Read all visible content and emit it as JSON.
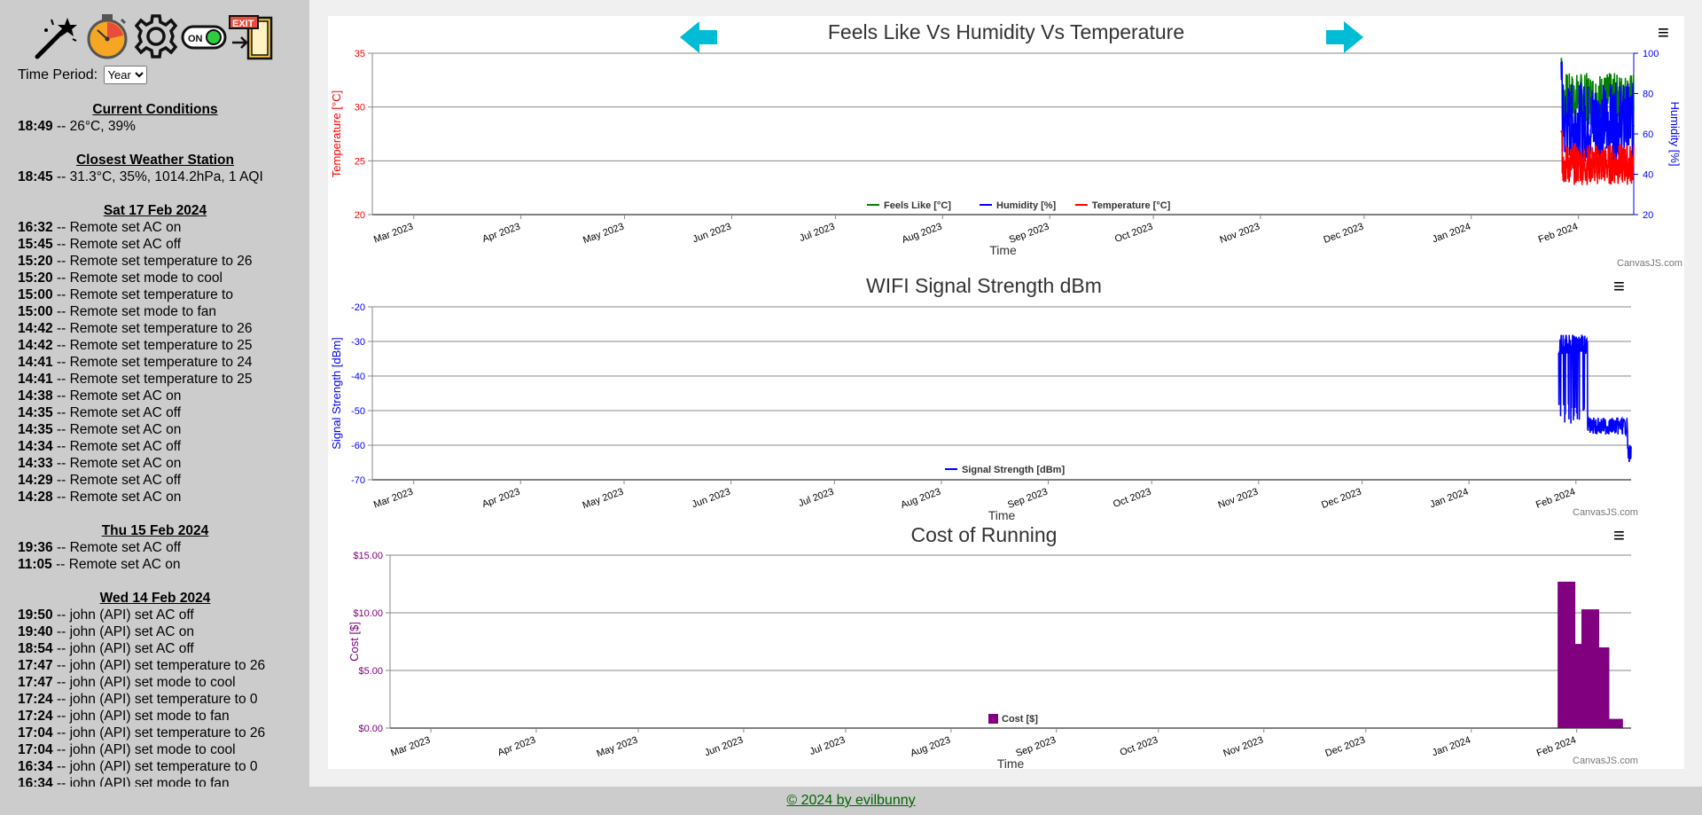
{
  "toolbar": {
    "icons": [
      "magic-wand-icon",
      "timer-icon",
      "gear-icon",
      "power-toggle-icon",
      "exit-icon"
    ],
    "toggle_label": "ON",
    "exit_label": "EXIT"
  },
  "period": {
    "label": "Time Period:",
    "selected": "Year",
    "options": [
      "Year"
    ]
  },
  "current": {
    "heading": "Current Conditions",
    "time": "18:49",
    "text": " -- 26°C, 39%"
  },
  "station": {
    "heading": "Closest Weather Station",
    "time": "18:45",
    "text": " -- 31.3°C, 35%, 1014.2hPa, 1 AQI"
  },
  "log": [
    {
      "date": "Sat 17 Feb 2024",
      "entries": [
        [
          "16:32",
          " -- Remote set AC on"
        ],
        [
          "15:45",
          " -- Remote set AC off"
        ],
        [
          "15:20",
          " -- Remote set temperature to 26"
        ],
        [
          "15:20",
          " -- Remote set mode to cool"
        ],
        [
          "15:00",
          " -- Remote set temperature to"
        ],
        [
          "15:00",
          " -- Remote set mode to fan"
        ],
        [
          "14:42",
          " -- Remote set temperature to 26"
        ],
        [
          "14:42",
          " -- Remote set temperature to 25"
        ],
        [
          "14:41",
          " -- Remote set temperature to 24"
        ],
        [
          "14:41",
          " -- Remote set temperature to 25"
        ],
        [
          "14:38",
          " -- Remote set AC on"
        ],
        [
          "14:35",
          " -- Remote set AC off"
        ],
        [
          "14:35",
          " -- Remote set AC on"
        ],
        [
          "14:34",
          " -- Remote set AC off"
        ],
        [
          "14:33",
          " -- Remote set AC on"
        ],
        [
          "14:29",
          " -- Remote set AC off"
        ],
        [
          "14:28",
          " -- Remote set AC on"
        ]
      ]
    },
    {
      "date": "Thu 15 Feb 2024",
      "entries": [
        [
          "19:36",
          " -- Remote set AC off"
        ],
        [
          "11:05",
          " -- Remote set AC on"
        ]
      ]
    },
    {
      "date": "Wed 14 Feb 2024",
      "entries": [
        [
          "19:50",
          " -- john (API) set AC off"
        ],
        [
          "19:40",
          " -- john (API) set AC on"
        ],
        [
          "18:54",
          " -- john (API) set AC off"
        ],
        [
          "17:47",
          " -- john (API) set temperature to 26"
        ],
        [
          "17:47",
          " -- john (API) set mode to cool"
        ],
        [
          "17:24",
          " -- john (API) set temperature to 0"
        ],
        [
          "17:24",
          " -- john (API) set mode to fan"
        ],
        [
          "17:04",
          " -- john (API) set temperature to 26"
        ],
        [
          "17:04",
          " -- john (API) set mode to cool"
        ],
        [
          "16:34",
          " -- john (API) set temperature to 0"
        ],
        [
          "16:34",
          " -- john (API) set mode to fan"
        ]
      ]
    }
  ],
  "footer": {
    "text": "© 2024 by evilbunny"
  },
  "canvasjs_credit": "CanvasJS.com",
  "colors": {
    "green": "#008000",
    "blue": "#0000ff",
    "red": "#ff0000",
    "purple": "#800080",
    "arrow": "#00bcd4"
  },
  "chart_data": [
    {
      "type": "line",
      "title": "Feels Like Vs Humidity Vs Temperature",
      "xlabel": "Time",
      "ylabel": "Temperature [°C]",
      "y2label": "Humidity [%]",
      "x_ticks": [
        "Mar 2023",
        "Apr 2023",
        "May 2023",
        "Jun 2023",
        "Jul 2023",
        "Aug 2023",
        "Sep 2023",
        "Oct 2023",
        "Nov 2023",
        "Dec 2023",
        "Jan 2024",
        "Feb 2024"
      ],
      "ylim": [
        20,
        35
      ],
      "y_ticks": [
        20,
        25,
        30,
        35
      ],
      "y2lim": [
        20,
        100
      ],
      "y2_ticks": [
        20,
        40,
        60,
        80,
        100
      ],
      "xlim": [
        "2023-02-17",
        "2024-02-17"
      ],
      "legend": "bottom-center",
      "series": [
        {
          "name": "Feels Like [°C]",
          "color": "#008000",
          "x_range": [
            "2024-01-27",
            "2024-02-17"
          ],
          "min": 26,
          "max": 35
        },
        {
          "name": "Humidity [%]",
          "color": "#0000ff",
          "axis": "y2",
          "x_range": [
            "2024-01-27",
            "2024-02-17"
          ],
          "min": 28,
          "max": 100
        },
        {
          "name": "Temperature [°C]",
          "color": "#ff0000",
          "x_range": [
            "2024-01-27",
            "2024-02-17"
          ],
          "min": 21,
          "max": 28
        }
      ]
    },
    {
      "type": "line",
      "title": "WIFI Signal Strength dBm",
      "xlabel": "Time",
      "ylabel": "Signal Strength [dBm]",
      "x_ticks": [
        "Mar 2023",
        "Apr 2023",
        "May 2023",
        "Jun 2023",
        "Jul 2023",
        "Aug 2023",
        "Sep 2023",
        "Oct 2023",
        "Nov 2023",
        "Dec 2023",
        "Jan 2024",
        "Feb 2024"
      ],
      "ylim": [
        -70,
        -20
      ],
      "y_ticks": [
        -70,
        -60,
        -50,
        -40,
        -30,
        -20
      ],
      "xlim": [
        "2023-02-17",
        "2024-02-17"
      ],
      "legend": "bottom-center",
      "series": [
        {
          "name": "Signal Strength [dBm]",
          "color": "#0000ff",
          "x_range": [
            "2024-01-27",
            "2024-02-17"
          ],
          "min": -63,
          "max": -28
        }
      ]
    },
    {
      "type": "bar",
      "title": "Cost of Running",
      "xlabel": "Time",
      "ylabel": "Cost [$]",
      "x_ticks": [
        "Mar 2023",
        "Apr 2023",
        "May 2023",
        "Jun 2023",
        "Jul 2023",
        "Aug 2023",
        "Sep 2023",
        "Oct 2023",
        "Nov 2023",
        "Dec 2023",
        "Jan 2024",
        "Feb 2024"
      ],
      "ylim": [
        0,
        15
      ],
      "y_ticks": [
        "$0.00",
        "$5.00",
        "$10.00",
        "$15.00"
      ],
      "xlim": [
        "2023-02-17",
        "2024-02-17"
      ],
      "legend": "bottom-center",
      "series": [
        {
          "name": "Cost [$]",
          "color": "#800080",
          "x": [
            "2024-01-29",
            "2024-02-01",
            "2024-02-05",
            "2024-02-08",
            "2024-02-12"
          ],
          "values": [
            12.7,
            7.3,
            10.3,
            7.0,
            0.8
          ]
        }
      ]
    }
  ]
}
